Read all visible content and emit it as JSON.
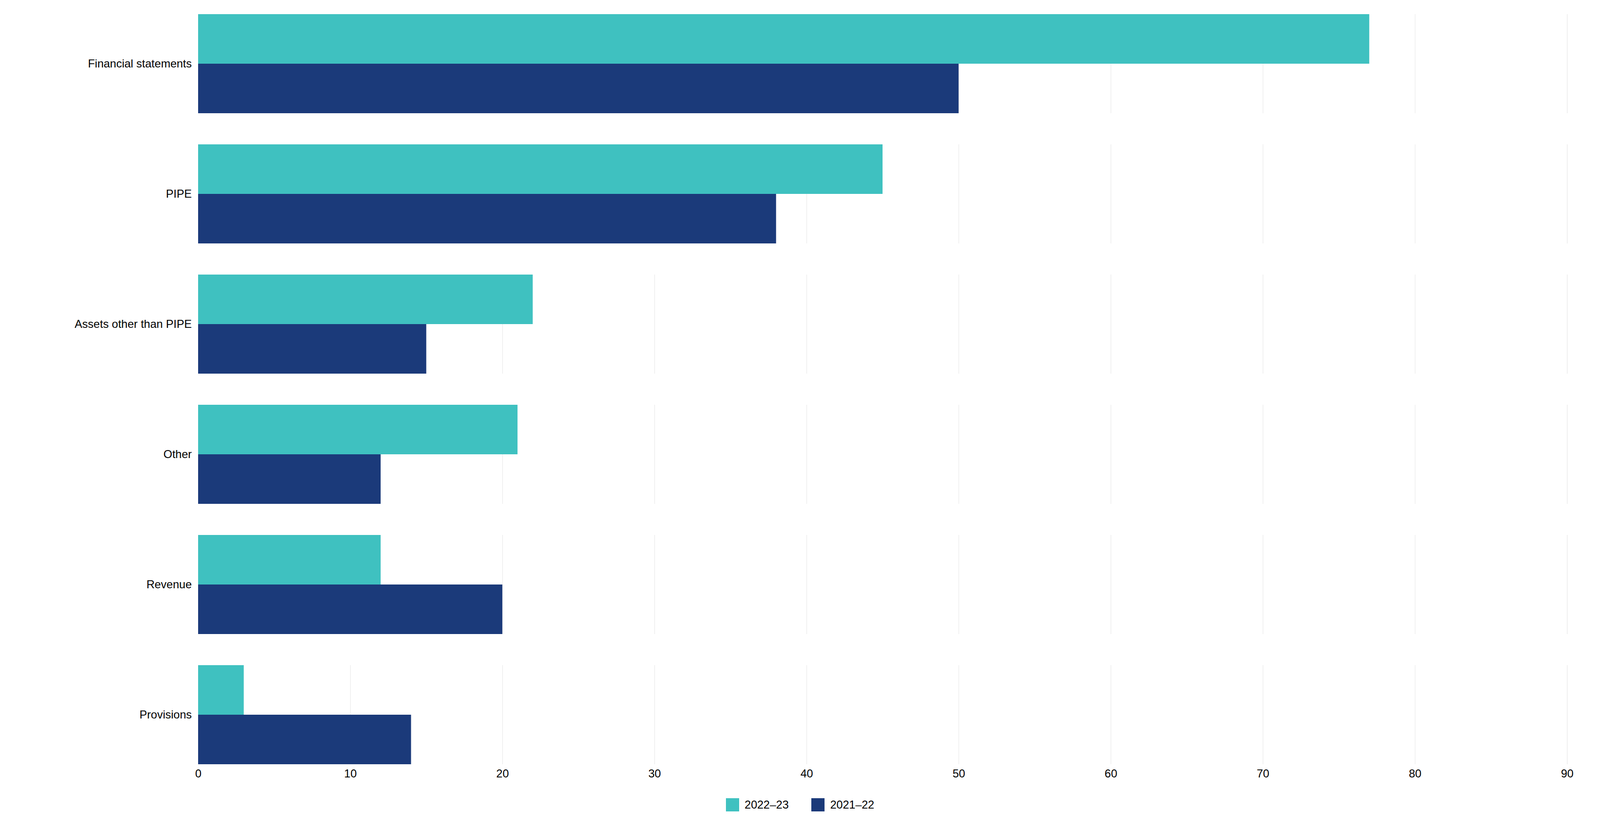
{
  "chart_data": {
    "type": "bar",
    "orientation": "horizontal",
    "categories": [
      "Financial statements",
      "PIPE",
      "Assets other than PIPE",
      "Other",
      "Revenue",
      "Provisions"
    ],
    "series": [
      {
        "name": "2022–23",
        "color": "#3fc1c0",
        "values": [
          77,
          45,
          22,
          21,
          12,
          3
        ]
      },
      {
        "name": "2021–22",
        "color": "#1b3a7a",
        "values": [
          50,
          38,
          15,
          12,
          20,
          14
        ]
      }
    ],
    "xlim": [
      0,
      90
    ],
    "xticks": [
      0,
      10,
      20,
      30,
      40,
      50,
      60,
      70,
      80,
      90
    ],
    "grid": true,
    "legend": "bottom"
  }
}
